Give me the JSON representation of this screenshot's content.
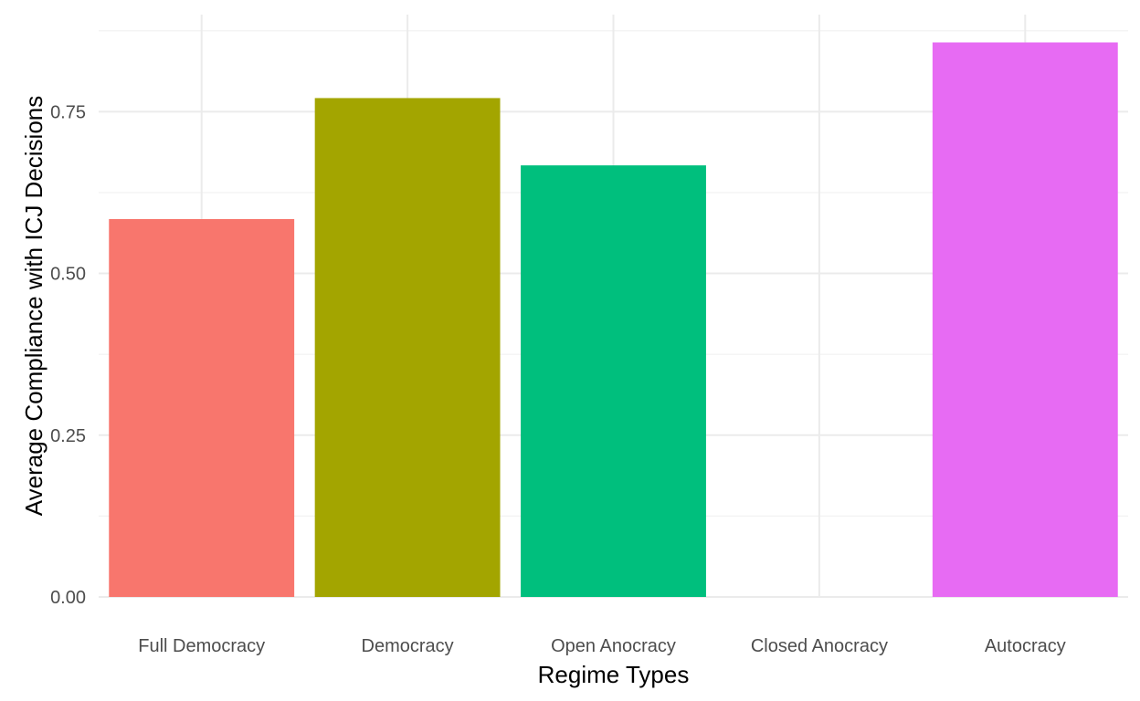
{
  "chart_data": {
    "type": "bar",
    "categories": [
      "Full Democracy",
      "Democracy",
      "Open Anocracy",
      "Closed Anocracy",
      "Autocracy"
    ],
    "values": [
      0.584,
      0.771,
      0.667,
      0.0,
      0.857
    ],
    "colors": [
      "#F8766D",
      "#A3A500",
      "#00BF7D",
      "#00B0F6",
      "#E76BF3"
    ],
    "xlabel": "Regime Types",
    "ylabel": "Average Compliance with ICJ Decisions",
    "ylim": [
      0,
      0.9
    ],
    "yticks": [
      0,
      0.25,
      0.5,
      0.75
    ],
    "ytick_labels": [
      "0.00",
      "0.25",
      "0.50",
      "0.75"
    ],
    "grid": true,
    "legend": "none"
  }
}
